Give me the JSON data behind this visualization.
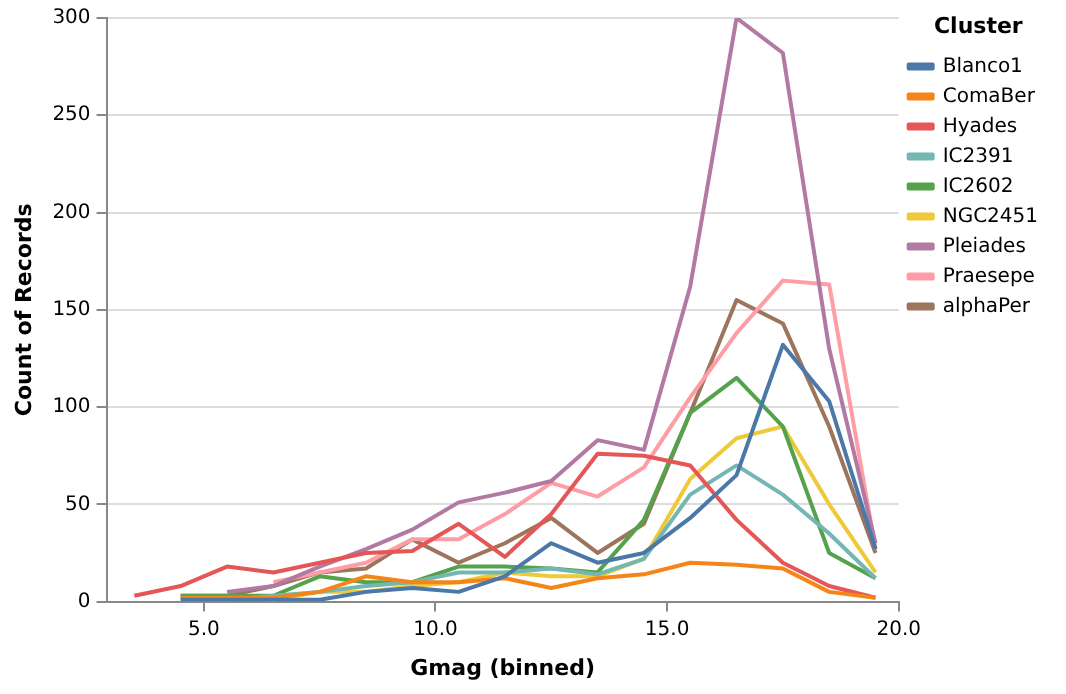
{
  "chart_data": {
    "type": "line",
    "xlabel": "Gmag (binned)",
    "ylabel": "Count of Records",
    "legend_title": "Cluster",
    "legend": "top right",
    "grid": "y",
    "marker": "none",
    "x": [
      3.5,
      4.5,
      5.5,
      6.5,
      7.5,
      8.5,
      9.5,
      10.5,
      11.5,
      12.5,
      13.5,
      14.5,
      15.5,
      16.5,
      17.5,
      18.5,
      19.5
    ],
    "xlim": [
      2.9,
      20
    ],
    "xticks": [
      {
        "value": 5,
        "label": "5.0"
      },
      {
        "value": 10,
        "label": "10.0"
      },
      {
        "value": 15,
        "label": "15.0"
      },
      {
        "value": 20,
        "label": "20.0"
      }
    ],
    "ylim": [
      0,
      300
    ],
    "yticks": [
      0,
      50,
      100,
      150,
      200,
      250,
      300
    ],
    "series": [
      {
        "name": "Blanco1",
        "color": "#4c78a8",
        "values": [
          null,
          1,
          1,
          1,
          1,
          5,
          7,
          5,
          13,
          30,
          20,
          25,
          43,
          65,
          132,
          103,
          27
        ]
      },
      {
        "name": "ComaBer",
        "color": "#f58518",
        "values": [
          null,
          2,
          2,
          2,
          5,
          13,
          10,
          10,
          12,
          7,
          12,
          14,
          20,
          19,
          17,
          5,
          2
        ]
      },
      {
        "name": "Hyades",
        "color": "#e45756",
        "values": [
          3,
          8,
          18,
          15,
          20,
          25,
          26,
          40,
          23,
          45,
          76,
          75,
          70,
          42,
          20,
          8,
          2
        ]
      },
      {
        "name": "IC2391",
        "color": "#72b7b2",
        "values": [
          null,
          1,
          1,
          3,
          5,
          8,
          10,
          15,
          15,
          17,
          14,
          22,
          55,
          70,
          55,
          35,
          12
        ]
      },
      {
        "name": "IC2602",
        "color": "#54a24b",
        "values": [
          null,
          3,
          3,
          3,
          13,
          10,
          10,
          18,
          18,
          17,
          15,
          42,
          97,
          115,
          90,
          25,
          12
        ]
      },
      {
        "name": "NGC2451",
        "color": "#eeca3b",
        "values": [
          null,
          null,
          3,
          1,
          5,
          5,
          8,
          10,
          15,
          13,
          13,
          22,
          63,
          84,
          90,
          50,
          15
        ]
      },
      {
        "name": "Pleiades",
        "color": "#b279a2",
        "values": [
          null,
          null,
          5,
          8,
          18,
          27,
          37,
          51,
          56,
          62,
          83,
          78,
          162,
          300,
          282,
          130,
          30
        ]
      },
      {
        "name": "Praesepe",
        "color": "#ff9da6",
        "values": [
          null,
          null,
          null,
          10,
          15,
          20,
          32,
          32,
          45,
          61,
          54,
          69,
          105,
          138,
          165,
          163,
          27
        ]
      },
      {
        "name": "alphaPer",
        "color": "#9d755d",
        "values": [
          null,
          3,
          3,
          8,
          15,
          17,
          32,
          20,
          30,
          43,
          25,
          40,
          97,
          155,
          143,
          90,
          25
        ]
      }
    ]
  }
}
